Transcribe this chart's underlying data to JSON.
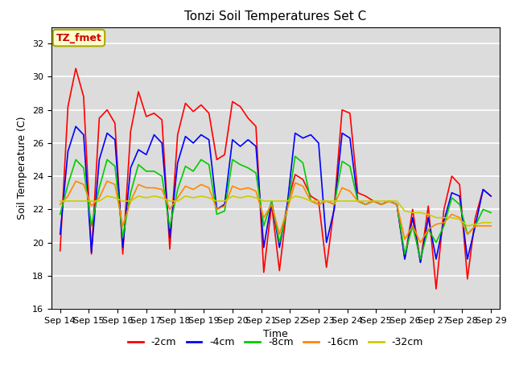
{
  "title": "Tonzi Soil Temperatures Set C",
  "xlabel": "Time",
  "ylabel": "Soil Temperature (C)",
  "ylim": [
    16,
    33
  ],
  "yticks": [
    16,
    18,
    20,
    22,
    24,
    26,
    28,
    30,
    32
  ],
  "background_color": "#dcdcdc",
  "annotation_text": "TZ_fmet",
  "annotation_color": "#cc0000",
  "annotation_bg": "#ffffcc",
  "annotation_border": "#aaaa00",
  "series_order": [
    "-2cm",
    "-4cm",
    "-8cm",
    "-16cm",
    "-32cm"
  ],
  "series_colors": {
    "-2cm": "#ff0000",
    "-4cm": "#0000ff",
    "-8cm": "#00cc00",
    "-16cm": "#ff8800",
    "-32cm": "#cccc00"
  },
  "x_labels": [
    "Sep 14",
    "Sep 15",
    "Sep 16",
    "Sep 17",
    "Sep 18",
    "Sep 19",
    "Sep 20",
    "Sep 21",
    "Sep 22",
    "Sep 23",
    "Sep 24",
    "Sep 25",
    "Sep 26",
    "Sep 27",
    "Sep 28",
    "Sep 29"
  ],
  "data": {
    "-2cm": [
      19.5,
      28.2,
      30.5,
      28.8,
      19.3,
      27.5,
      28.0,
      27.2,
      19.3,
      26.7,
      29.1,
      27.6,
      27.8,
      27.4,
      19.6,
      26.5,
      28.4,
      27.9,
      28.3,
      27.8,
      25.0,
      25.3,
      28.5,
      28.2,
      27.5,
      27.0,
      18.2,
      22.3,
      18.3,
      22.3,
      24.1,
      23.8,
      22.8,
      22.5,
      18.5,
      22.2,
      28.0,
      27.8,
      23.0,
      22.8,
      22.5,
      22.3,
      22.5,
      22.3,
      19.0,
      22.0,
      18.8,
      22.2,
      17.2,
      22.0,
      24.0,
      23.5,
      17.8,
      21.5,
      23.2,
      22.8
    ],
    "-4cm": [
      20.5,
      25.5,
      27.0,
      26.5,
      19.4,
      25.0,
      26.6,
      26.2,
      19.7,
      24.5,
      25.6,
      25.3,
      26.5,
      26.0,
      20.3,
      24.8,
      26.4,
      26.0,
      26.5,
      26.2,
      22.0,
      22.3,
      26.2,
      25.8,
      26.2,
      25.8,
      19.7,
      22.5,
      19.7,
      22.3,
      26.6,
      26.3,
      26.5,
      26.0,
      20.0,
      22.0,
      26.6,
      26.3,
      22.5,
      22.3,
      22.5,
      22.3,
      22.5,
      22.3,
      19.0,
      21.5,
      18.8,
      21.5,
      19.0,
      21.3,
      23.0,
      22.8,
      19.0,
      21.0,
      23.2,
      22.8
    ],
    "-8cm": [
      21.7,
      23.5,
      25.0,
      24.5,
      21.0,
      23.3,
      25.0,
      24.6,
      20.3,
      23.0,
      24.7,
      24.3,
      24.3,
      24.0,
      20.9,
      23.2,
      24.6,
      24.3,
      25.0,
      24.7,
      21.7,
      21.9,
      25.0,
      24.7,
      24.5,
      24.2,
      21.0,
      22.5,
      20.0,
      22.0,
      25.2,
      24.8,
      22.5,
      22.3,
      22.5,
      22.3,
      24.9,
      24.6,
      22.5,
      22.3,
      22.5,
      22.3,
      22.5,
      22.3,
      19.3,
      21.0,
      19.0,
      20.8,
      20.0,
      21.0,
      22.7,
      22.3,
      20.5,
      21.0,
      22.0,
      21.8
    ],
    "-16cm": [
      22.3,
      22.8,
      23.7,
      23.5,
      22.2,
      22.7,
      23.7,
      23.5,
      21.0,
      22.5,
      23.5,
      23.3,
      23.3,
      23.2,
      22.0,
      22.7,
      23.4,
      23.2,
      23.5,
      23.3,
      22.0,
      22.2,
      23.4,
      23.2,
      23.3,
      23.1,
      21.5,
      22.3,
      20.5,
      22.0,
      23.6,
      23.4,
      22.5,
      22.3,
      22.5,
      22.3,
      23.3,
      23.1,
      22.5,
      22.3,
      22.5,
      22.3,
      22.5,
      22.3,
      20.2,
      21.0,
      20.0,
      20.8,
      21.1,
      21.2,
      21.7,
      21.5,
      20.5,
      21.0,
      21.0,
      21.0
    ],
    "-32cm": [
      22.5,
      22.5,
      22.5,
      22.5,
      22.5,
      22.5,
      22.8,
      22.7,
      22.5,
      22.5,
      22.8,
      22.7,
      22.8,
      22.7,
      22.5,
      22.5,
      22.8,
      22.7,
      22.8,
      22.7,
      22.5,
      22.5,
      22.8,
      22.7,
      22.8,
      22.7,
      22.5,
      22.5,
      22.5,
      22.5,
      22.8,
      22.7,
      22.5,
      22.5,
      22.5,
      22.5,
      22.5,
      22.5,
      22.5,
      22.5,
      22.5,
      22.5,
      22.5,
      22.5,
      21.9,
      21.8,
      21.8,
      21.7,
      21.5,
      21.5,
      21.5,
      21.4,
      21.0,
      21.1,
      21.2,
      21.2
    ]
  }
}
